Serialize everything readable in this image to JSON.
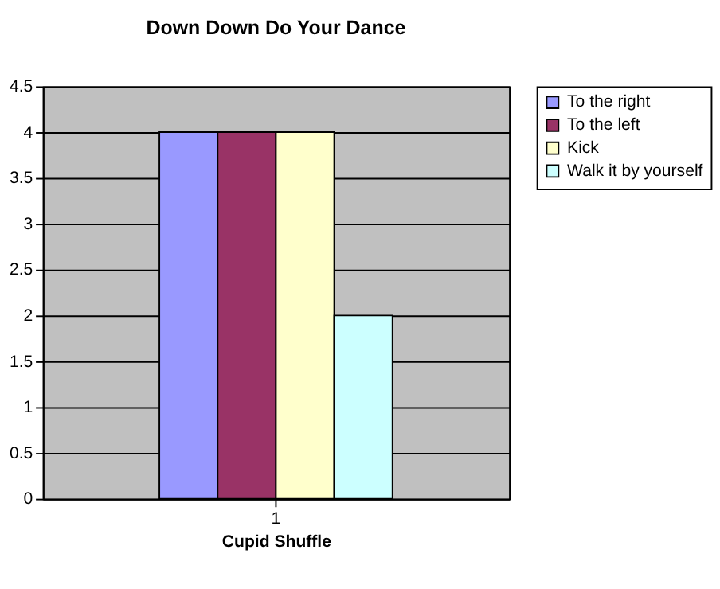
{
  "chart_data": {
    "type": "bar",
    "title": "Down Down Do Your Dance",
    "xlabel": "Cupid Shuffle",
    "categories": [
      "1"
    ],
    "series": [
      {
        "name": "To the right",
        "color": "#9999ff",
        "values": [
          4
        ]
      },
      {
        "name": "To the left",
        "color": "#993366",
        "values": [
          4
        ]
      },
      {
        "name": "Kick",
        "color": "#ffffcc",
        "values": [
          4
        ]
      },
      {
        "name": "Walk it by yourself",
        "color": "#ccffff",
        "values": [
          2
        ]
      }
    ],
    "ylim": [
      0,
      4.5
    ],
    "yticks": [
      0,
      0.5,
      1,
      1.5,
      2,
      2.5,
      3,
      3.5,
      4,
      4.5
    ],
    "grid": "y",
    "legend": "right"
  }
}
